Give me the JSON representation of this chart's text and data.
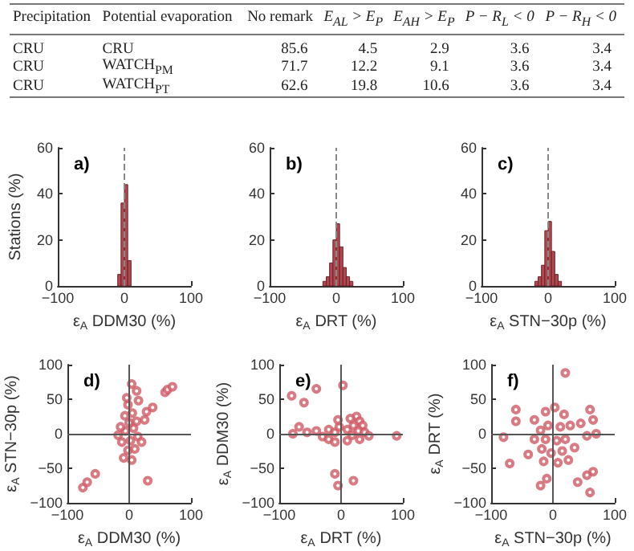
{
  "chart_data": [
    {
      "type": "other",
      "categories": [
        "Precipitation",
        "Potential evaporation",
        "No remark",
        "E$_{AL}$ > E$_{P}$",
        "E$_{AH}$ > E$_{P}$",
        "P − R$_{L}$ < 0",
        "P − R$_{H}$ < 0"
      ],
      "cell_labels": [
        [
          "CRU",
          "CRU",
          "85.6",
          "4.5",
          "2.9",
          "3.6",
          "3.4"
        ],
        [
          "CRU",
          "WATCH$_{PM}$",
          "71.7",
          "12.2",
          "9.1",
          "3.6",
          "3.4"
        ],
        [
          "CRU",
          "WATCH$_{PT}$",
          "62.6",
          "19.8",
          "10.6",
          "3.6",
          "3.4"
        ]
      ]
    },
    {
      "type": "histogram",
      "title": "a)",
      "xlabel": "ε$_{A}$ DDM30 (%)",
      "ylabel": "Stations (%)",
      "color": "#b04850",
      "bins": [
        -10,
        -5,
        0,
        5,
        10
      ],
      "values": [
        5,
        36,
        44,
        11
      ],
      "xlim": [
        -100,
        100
      ],
      "xticks": [
        -100,
        0,
        100
      ],
      "ylim": [
        0,
        60
      ],
      "yticks": [
        0,
        20,
        40,
        60
      ],
      "ref_lines": [
        {
          "axis": "x",
          "value": 0,
          "line_style": "dashed",
          "color": "#888888"
        }
      ],
      "grid": false
    },
    {
      "type": "histogram",
      "title": "b)",
      "xlabel": "ε$_{A}$ DRT (%)",
      "color": "#b04850",
      "bins": [
        -20,
        -15,
        -10,
        -5,
        0,
        5,
        10,
        15,
        20,
        25
      ],
      "values": [
        2,
        4,
        10,
        20,
        27,
        17,
        8,
        4,
        2
      ],
      "xlim": [
        -100,
        100
      ],
      "xticks": [
        -100,
        0,
        100
      ],
      "ylim": [
        0,
        60
      ],
      "yticks": [
        0,
        20,
        40,
        60
      ],
      "ref_lines": [
        {
          "axis": "x",
          "value": 0,
          "line_style": "dashed",
          "color": "#888888"
        }
      ],
      "grid": false
    },
    {
      "type": "histogram",
      "title": "c)",
      "xlabel": "ε$_{A}$ STN−30p (%)",
      "color": "#b04850",
      "bins": [
        -20,
        -15,
        -10,
        -5,
        0,
        5,
        10,
        15,
        20
      ],
      "values": [
        2,
        4,
        9,
        24,
        28,
        15,
        5,
        2
      ],
      "xlim": [
        -100,
        100
      ],
      "xticks": [
        -100,
        0,
        100
      ],
      "ylim": [
        0,
        60
      ],
      "yticks": [
        0,
        20,
        40,
        60
      ],
      "ref_lines": [
        {
          "axis": "x",
          "value": 0,
          "line_style": "dashed",
          "color": "#888888"
        }
      ],
      "grid": false
    },
    {
      "type": "scatter",
      "title": "d)",
      "xlabel": "ε$_{A}$ DDM30 (%)",
      "ylabel": "ε$_{A}$ STN−30p (%)",
      "marker": "circle",
      "xlim": [
        -100,
        100
      ],
      "xticks": [
        -100,
        0,
        100
      ],
      "ylim": [
        -100,
        100
      ],
      "yticks": [
        -100,
        -50,
        0,
        50,
        100
      ],
      "grid": false,
      "ref_lines": [
        {
          "axis": "x",
          "value": 0,
          "line_style": "solid",
          "color": "#555555"
        },
        {
          "axis": "y",
          "value": 0,
          "line_style": "solid",
          "color": "#555555"
        }
      ],
      "series": [
        {
          "color": "#d05a64",
          "x": [
            -75,
            -68,
            -55,
            58,
            62,
            70,
            28,
            38,
            25,
            4,
            12,
            15,
            30,
            -9,
            4,
            -2,
            9,
            -12,
            2,
            14,
            -6,
            7,
            -14,
            0,
            12,
            -7,
            5,
            -2,
            -4,
            20,
            -18
          ],
          "values": [
            -78,
            -70,
            -58,
            60,
            64,
            68,
            32,
            38,
            20,
            72,
            62,
            48,
            -68,
            -35,
            -38,
            -24,
            -22,
            -12,
            -10,
            -4,
            4,
            8,
            10,
            16,
            18,
            26,
            30,
            42,
            52,
            -12,
            -2
          ]
        }
      ]
    },
    {
      "type": "scatter",
      "title": "e)",
      "xlabel": "ε$_{A}$ DRT (%)",
      "ylabel": "ε$_{A}$ DDM30 (%)",
      "marker": "circle",
      "xlim": [
        -100,
        100
      ],
      "xticks": [
        -100,
        0,
        100
      ],
      "ylim": [
        -100,
        100
      ],
      "yticks": [
        -100,
        -50,
        0,
        50,
        100
      ],
      "grid": false,
      "ref_lines": [
        {
          "axis": "x",
          "value": 0,
          "line_style": "solid",
          "color": "#555555"
        },
        {
          "axis": "y",
          "value": 0,
          "line_style": "solid",
          "color": "#555555"
        }
      ],
      "series": [
        {
          "color": "#d05a64",
          "x": [
            -80,
            -60,
            -40,
            -78,
            -68,
            -55,
            3,
            -10,
            20,
            -5,
            90,
            25,
            30,
            35,
            -30,
            -20,
            -20,
            -10,
            -10,
            -3,
            10,
            10,
            18,
            20,
            28,
            30,
            38,
            45,
            -40,
            -5,
            15
          ],
          "values": [
            55,
            45,
            65,
            0,
            10,
            2,
            70,
            -58,
            -68,
            -75,
            -3,
            25,
            18,
            12,
            -4,
            6,
            -8,
            2,
            -12,
            10,
            6,
            -10,
            -2,
            12,
            4,
            -8,
            2,
            -3,
            4,
            20,
            22
          ]
        }
      ]
    },
    {
      "type": "scatter",
      "title": "f)",
      "xlabel": "ε$_{A}$ STN−30p (%)",
      "ylabel": "ε$_{A}$ DRT (%)",
      "marker": "circle",
      "xlim": [
        -100,
        100
      ],
      "xticks": [
        -100,
        0,
        100
      ],
      "ylim": [
        -100,
        100
      ],
      "yticks": [
        -100,
        -50,
        0,
        50,
        100
      ],
      "grid": false,
      "ref_lines": [
        {
          "axis": "x",
          "value": 0,
          "line_style": "solid",
          "color": "#555555"
        },
        {
          "axis": "y",
          "value": 0,
          "line_style": "solid",
          "color": "#555555"
        }
      ],
      "series": [
        {
          "color": "#d05a64",
          "x": [
            -80,
            -60,
            -60,
            -70,
            -40,
            -20,
            -10,
            20,
            60,
            65,
            55,
            40,
            60,
            65,
            70,
            55,
            45,
            35,
            -30,
            -15,
            -12,
            3,
            18,
            28,
            12,
            -8,
            -20,
            -30,
            -12,
            6,
            20,
            15,
            -3,
            -18,
            8,
            25
          ],
          "values": [
            -5,
            35,
            18,
            -43,
            -30,
            -75,
            -65,
            88,
            -85,
            -55,
            -60,
            -70,
            35,
            20,
            0,
            -3,
            15,
            -20,
            20,
            -40,
            32,
            38,
            28,
            12,
            10,
            12,
            5,
            -8,
            -8,
            -10,
            -8,
            -25,
            -28,
            -22,
            -42,
            -38
          ]
        }
      ]
    }
  ]
}
